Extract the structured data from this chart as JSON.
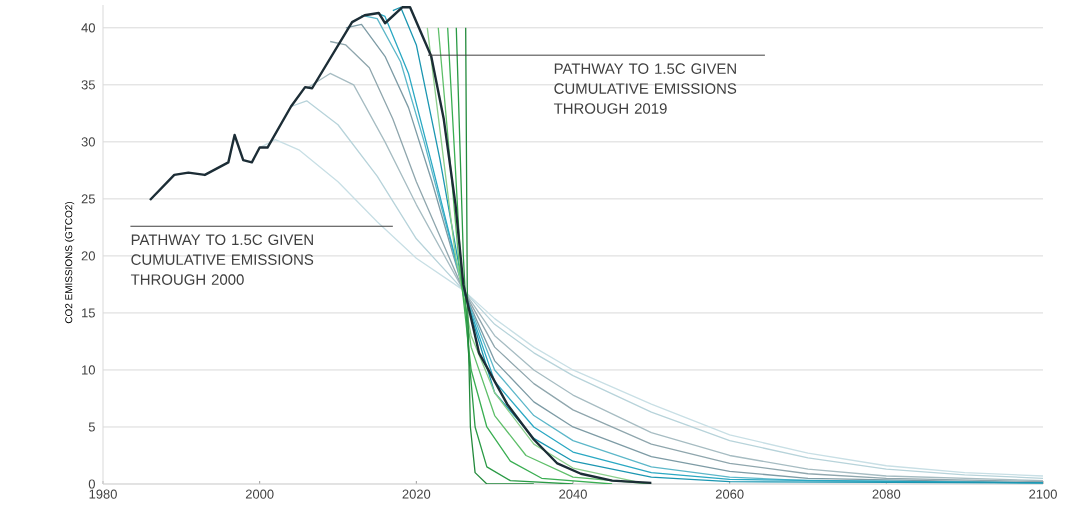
{
  "chart_data": {
    "type": "line",
    "ylabel": "CO2 EMISSIONS (GTCO2)",
    "xlim": [
      1980,
      2100
    ],
    "ylim": [
      0,
      42
    ],
    "xticks": [
      1980,
      2000,
      2020,
      2040,
      2060,
      2080,
      2100
    ],
    "yticks": [
      0,
      5,
      10,
      15,
      20,
      25,
      30,
      35,
      40
    ],
    "grid": "y",
    "annotations": [
      "PATHWAY TO 1.5C GIVEN CUMULATIVE EMISSIONS THROUGH 2019",
      "PATHWAY TO 1.5C GIVEN CUMULATIVE EMISSIONS THROUGH 2000"
    ],
    "series": [
      {
        "color": "#c8dfe5",
        "x": [
          2000,
          2002,
          2005,
          2010,
          2015,
          2020,
          2026,
          2030,
          2035,
          2040,
          2050,
          2060,
          2070,
          2080,
          2090,
          2100
        ],
        "values": [
          29.5,
          30.2,
          29.3,
          26.5,
          23.0,
          19.8,
          17.0,
          14.5,
          12.0,
          10.0,
          7.0,
          4.3,
          2.7,
          1.6,
          1.0,
          0.7
        ]
      },
      {
        "color": "#b7d3da",
        "x": [
          2004,
          2006,
          2010,
          2015,
          2020,
          2026,
          2030,
          2035,
          2040,
          2050,
          2060,
          2070,
          2080,
          2090,
          2100
        ],
        "values": [
          33.1,
          33.6,
          31.5,
          27.0,
          21.5,
          17.0,
          14.0,
          11.5,
          9.5,
          6.3,
          3.8,
          2.3,
          1.3,
          0.8,
          0.5
        ]
      },
      {
        "color": "#a6bcc2",
        "x": [
          2006,
          2009,
          2012,
          2016,
          2020,
          2026,
          2030,
          2035,
          2040,
          2050,
          2060,
          2070,
          2080,
          2100
        ],
        "values": [
          34.7,
          36.0,
          35.0,
          30.0,
          24.5,
          17.0,
          13.0,
          10.0,
          7.8,
          4.5,
          2.5,
          1.3,
          0.7,
          0.3
        ]
      },
      {
        "color": "#8fa6ad",
        "x": [
          2009,
          2011,
          2014,
          2017,
          2020,
          2026,
          2030,
          2035,
          2040,
          2050,
          2060,
          2070,
          2080,
          2100
        ],
        "values": [
          38.8,
          38.5,
          36.5,
          32.0,
          26.5,
          17.0,
          12.0,
          8.8,
          6.5,
          3.5,
          1.8,
          0.9,
          0.5,
          0.2
        ]
      },
      {
        "color": "#7d9ba5",
        "x": [
          2011,
          2013,
          2016,
          2019,
          2022,
          2026,
          2030,
          2035,
          2040,
          2050,
          2060,
          2070,
          2100
        ],
        "values": [
          40.0,
          40.3,
          37.5,
          33.0,
          26.5,
          17.0,
          10.8,
          7.2,
          5.0,
          2.4,
          1.1,
          0.5,
          0.1
        ]
      },
      {
        "color": "#5cb7c9",
        "x": [
          2013,
          2015,
          2018,
          2021,
          2026,
          2030,
          2035,
          2040,
          2050,
          2060,
          2070,
          2100
        ],
        "values": [
          41.1,
          40.8,
          37.0,
          30.0,
          17.0,
          10.0,
          6.0,
          3.8,
          1.5,
          0.6,
          0.3,
          0.1
        ]
      },
      {
        "color": "#2aa8c3",
        "x": [
          2015,
          2016,
          2019,
          2022,
          2026,
          2030,
          2035,
          2040,
          2050,
          2060,
          2100
        ],
        "values": [
          41.3,
          41.0,
          36.0,
          28.0,
          17.0,
          9.0,
          5.0,
          2.8,
          1.0,
          0.4,
          0.1
        ]
      },
      {
        "color": "#1b96b1",
        "x": [
          2017,
          2018,
          2020,
          2023,
          2026,
          2030,
          2035,
          2040,
          2050,
          2060,
          2100
        ],
        "values": [
          41.5,
          41.8,
          38.5,
          28.5,
          17.0,
          8.0,
          4.0,
          2.0,
          0.6,
          0.2,
          0.1
        ]
      },
      {
        "color": "#8ccf8c",
        "x": [
          2021.4,
          2025,
          2027,
          2030,
          2035,
          2040,
          2048
        ],
        "values": [
          40,
          20,
          13,
          8,
          3.5,
          1.4,
          0.2
        ]
      },
      {
        "color": "#5fbf6a",
        "x": [
          2022.8,
          2025.5,
          2027,
          2030,
          2034,
          2040,
          2050
        ],
        "values": [
          40,
          19,
          12,
          6,
          2.5,
          0.6,
          0
        ]
      },
      {
        "color": "#3aae52",
        "x": [
          2024,
          2025.8,
          2027,
          2029,
          2032,
          2036,
          2045
        ],
        "values": [
          40,
          17.5,
          10,
          5,
          2,
          0.5,
          0
        ]
      },
      {
        "color": "#2a9a45",
        "x": [
          2025.1,
          2026,
          2026.6,
          2027.5,
          2029,
          2032,
          2040
        ],
        "values": [
          40,
          20,
          12,
          5,
          1.5,
          0.3,
          0
        ]
      },
      {
        "color": "#238a3c",
        "x": [
          2026.3,
          2026.5,
          2026.9,
          2027.5,
          2029,
          2035
        ],
        "values": [
          40,
          17.2,
          5,
          1,
          0,
          0
        ]
      },
      {
        "color": "#1c2d36",
        "x": [
          1986,
          1989.1,
          1990.9,
          1993,
          1996,
          1996.8,
          1997.9,
          1999,
          2000,
          2001,
          2004,
          2005.8,
          2006.7,
          2011.8,
          2013.4,
          2015.2,
          2016,
          2018.2,
          2019.2,
          2021.9,
          2023.5,
          2025,
          2026,
          2028,
          2031.6,
          2035,
          2038,
          2041,
          2045,
          2050
        ],
        "values": [
          24.9,
          27.1,
          27.3,
          27.1,
          28.2,
          30.6,
          28.4,
          28.2,
          29.5,
          29.5,
          33.1,
          34.8,
          34.7,
          40.5,
          41.1,
          41.3,
          40.4,
          41.8,
          41.8,
          37.5,
          32.0,
          24.5,
          17.5,
          11.5,
          7.0,
          3.9,
          1.8,
          0.9,
          0.3,
          0.1
        ]
      }
    ]
  }
}
